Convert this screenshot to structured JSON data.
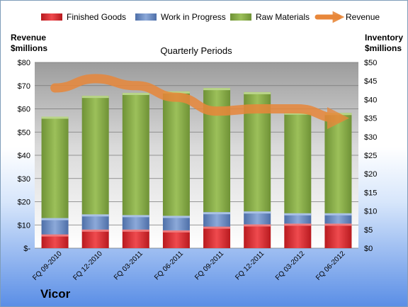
{
  "chart_data": {
    "type": "bar",
    "subtitle": "Quarterly Periods",
    "categories": [
      "FQ 09-2010",
      "FQ 12-2010",
      "FQ 03-2011",
      "FQ 06-2011",
      "FQ 09-2011",
      "FQ 12-2011",
      "FQ 03-2012",
      "FQ 06-2012"
    ],
    "series": [
      {
        "name": "Finished Goods",
        "axis": "right",
        "color": "#e0262b",
        "values": [
          3.7,
          5.0,
          5.0,
          4.8,
          5.8,
          6.4,
          6.6,
          6.6
        ]
      },
      {
        "name": "Work in Progress",
        "axis": "right",
        "color": "#6a8fc8",
        "values": [
          4.4,
          4.1,
          3.9,
          3.9,
          3.9,
          3.5,
          2.8,
          2.8
        ]
      },
      {
        "name": "Raw Materials",
        "axis": "right",
        "color": "#8eb04a",
        "values": [
          27.3,
          31.9,
          32.9,
          33.5,
          33.4,
          32.1,
          27.1,
          27.0
        ]
      },
      {
        "name": "Revenue",
        "axis": "left",
        "type": "line",
        "color": "#e8873a",
        "values": [
          69,
          73,
          70,
          65,
          59,
          60,
          60,
          56
        ]
      }
    ],
    "ylabel_left": "Revenue\n$millions",
    "ylabel_right": "Inventory\n$millions",
    "ylim_left": [
      0,
      80
    ],
    "ylim_right": [
      0,
      50
    ],
    "left_ticks": [
      "$-",
      "$10",
      "$20",
      "$30",
      "$40",
      "$50",
      "$60",
      "$70",
      "$80"
    ],
    "right_ticks": [
      "$0",
      "$5",
      "$10",
      "$15",
      "$20",
      "$25",
      "$30",
      "$35",
      "$40",
      "$45",
      "$50"
    ],
    "legend_position": "top",
    "grid": true
  },
  "labels": {
    "company": "Vicor",
    "ylabel_left_line1": "Revenue",
    "ylabel_left_line2": "$millions",
    "ylabel_right_line1": "Inventory",
    "ylabel_right_line2": "$millions",
    "subtitle": "Quarterly Periods"
  }
}
